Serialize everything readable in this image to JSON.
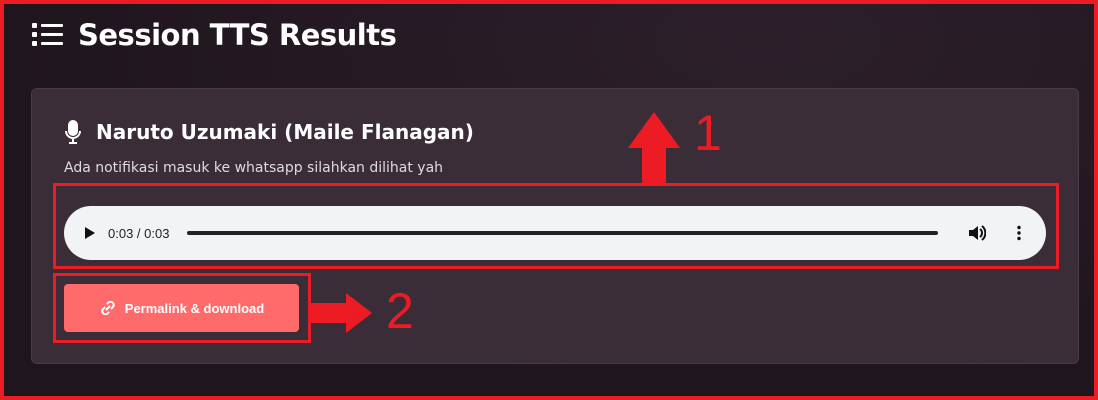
{
  "header": {
    "title": "Session TTS Results",
    "icon": "list-icon"
  },
  "card": {
    "voice_title": "Naruto Uzumaki (Maile Flanagan)",
    "text": "Ada notifikasi masuk ke whatsapp silahkan dilihat yah",
    "player": {
      "time": "0:03 / 0:03",
      "progress": 1.0
    },
    "button_label": "Permalink & download"
  },
  "annotations": {
    "label1": "1",
    "label2": "2",
    "color": "#ed1c24"
  }
}
